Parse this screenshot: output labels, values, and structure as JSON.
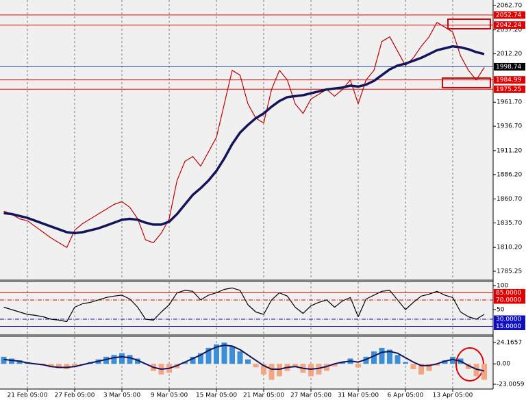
{
  "chart_data": [
    {
      "type": "line",
      "categories": [
        null,
        null,
        null,
        "21 Feb 05:00",
        null,
        null,
        null,
        null,
        null,
        "27 Feb 05:00",
        null,
        null,
        null,
        null,
        null,
        "3 Mar 05:00",
        null,
        null,
        null,
        null,
        null,
        "9 Mar 05:00",
        null,
        null,
        null,
        null,
        null,
        "15 Mar 05:00",
        null,
        null,
        null,
        null,
        null,
        "21 Mar 05:00",
        null,
        null,
        null,
        null,
        null,
        "27 Mar 05:00",
        null,
        null,
        null,
        null,
        null,
        "31 Mar 05:00",
        null,
        null,
        null,
        null,
        null,
        "6 Apr 05:00",
        null,
        null,
        null,
        null,
        null,
        "13 Apr 05:00",
        null,
        null,
        null,
        null
      ],
      "series": [
        {
          "color": "#c00000",
          "values": [
            1848,
            1845,
            1840,
            1838,
            1832,
            1826,
            1820,
            1815,
            1810,
            1828,
            1835,
            1840,
            1845,
            1850,
            1855,
            1858,
            1852,
            1840,
            1818,
            1815,
            1825,
            1840,
            1880,
            1900,
            1905,
            1895,
            1910,
            1925,
            1960,
            1995,
            1990,
            1960,
            1945,
            1940,
            1975,
            1995,
            1985,
            1960,
            1950,
            1965,
            1970,
            1975,
            1968,
            1975,
            1985,
            1960,
            1985,
            1995,
            2025,
            2030,
            2015,
            2000,
            2008,
            2020,
            2030,
            2045,
            2040,
            2035,
            2010,
            1995,
            1985,
            1998
          ]
        },
        {
          "color": "#14145a",
          "values": [
            1846,
            1845,
            1843,
            1841,
            1838,
            1835,
            1832,
            1829,
            1826,
            1825,
            1826,
            1828,
            1830,
            1833,
            1836,
            1839,
            1840,
            1839,
            1836,
            1834,
            1834,
            1837,
            1845,
            1855,
            1865,
            1872,
            1880,
            1890,
            1903,
            1918,
            1930,
            1938,
            1945,
            1950,
            1957,
            1963,
            1967,
            1968,
            1969,
            1971,
            1973,
            1975,
            1976,
            1977,
            1979,
            1978,
            1980,
            1984,
            1990,
            1996,
            2000,
            2002,
            2005,
            2008,
            2012,
            2016,
            2018,
            2020,
            2019,
            2017,
            2014,
            2012
          ]
        }
      ],
      "ylim": [
        1776.7,
        2068.4
      ],
      "yticks": [
        {
          "value": 2062.7,
          "label": "2062.70"
        },
        {
          "value": 2037.2,
          "label": "2037.20"
        },
        {
          "value": 2012.2,
          "label": "2012.20"
        },
        {
          "value": 1961.7,
          "label": "1961.70"
        },
        {
          "value": 1936.7,
          "label": "1936.70"
        },
        {
          "value": 1911.2,
          "label": "1911.20"
        },
        {
          "value": 1886.2,
          "label": "1886.20"
        },
        {
          "value": 1860.7,
          "label": "1860.70"
        },
        {
          "value": 1835.7,
          "label": "1835.70"
        },
        {
          "value": 1810.2,
          "label": "1810.20"
        },
        1785.25
      ],
      "levels": [
        2052.74,
        2042.24,
        1998.74,
        1984.99,
        1975.25
      ],
      "level_colors": [
        "#e00000",
        "#e00000",
        "#3050a0",
        "#e00000",
        "#e00000"
      ],
      "level_label_colors": [
        "#e00000",
        "#e00000",
        "#000000",
        "#e00000",
        "#e00000"
      ],
      "grid": true
    },
    {
      "type": "line",
      "series": [
        {
          "color": "#000000",
          "values": [
            55,
            50,
            45,
            40,
            38,
            35,
            30,
            28,
            25,
            55,
            62,
            65,
            70,
            75,
            78,
            80,
            72,
            55,
            30,
            28,
            45,
            60,
            85,
            90,
            88,
            70,
            80,
            85,
            92,
            95,
            90,
            60,
            45,
            40,
            70,
            85,
            78,
            55,
            42,
            58,
            65,
            70,
            55,
            68,
            75,
            35,
            72,
            80,
            88,
            90,
            70,
            50,
            65,
            78,
            82,
            88,
            80,
            75,
            45,
            35,
            30,
            40
          ]
        }
      ],
      "ylim": [
        -1.4,
        107
      ],
      "yticks": [
        100,
        50
      ],
      "levels": [
        {
          "value": 85,
          "label": "85.0000"
        },
        {
          "value": 70,
          "label": "70.0000"
        },
        {
          "value": 30,
          "label": "30.0000"
        },
        {
          "value": 15,
          "label": "15.0000"
        }
      ],
      "level_colors": [
        "#e00000",
        "#e00000",
        "#1010c0",
        "#1010c0"
      ],
      "level_label_colors": [
        "#e00000",
        "#e00000",
        "#1010c0",
        "#1010c0"
      ]
    },
    {
      "type": "histogram_line",
      "values": [
        8,
        6,
        4,
        2,
        0,
        -2,
        -4,
        -5,
        -6,
        -4,
        -1,
        2,
        5,
        8,
        10,
        12,
        10,
        6,
        0,
        -8,
        -12,
        -10,
        -5,
        2,
        8,
        12,
        18,
        22,
        24,
        20,
        14,
        5,
        -4,
        -12,
        -18,
        -14,
        -8,
        -4,
        -10,
        -14,
        -12,
        -8,
        -3,
        2,
        6,
        -4,
        8,
        14,
        18,
        16,
        10,
        2,
        -6,
        -12,
        -8,
        -2,
        4,
        8,
        6,
        -6,
        -14,
        -18
      ],
      "positive_color": "#3a8fd8",
      "negative_color": "#f4a582",
      "series": [
        {
          "color": "#14145a",
          "values": [
            5,
            4,
            3,
            1,
            0,
            -1,
            -3,
            -4,
            -4,
            -3,
            -1,
            1,
            3,
            5,
            7,
            8,
            7,
            4,
            0,
            -4,
            -6,
            -5,
            -2,
            2,
            6,
            10,
            15,
            19,
            21,
            20,
            16,
            10,
            4,
            -2,
            -6,
            -6,
            -4,
            -3,
            -5,
            -6,
            -5,
            -3,
            0,
            2,
            3,
            2,
            5,
            9,
            13,
            14,
            12,
            7,
            2,
            -2,
            -2,
            0,
            3,
            5,
            3,
            -2,
            -6,
            -8
          ]
        }
      ],
      "ylim": [
        -28.4,
        30.3
      ],
      "yticks": [
        24.1657,
        {
          "value": 0,
          "label": "0.00"
        },
        -23.0059
      ]
    }
  ]
}
